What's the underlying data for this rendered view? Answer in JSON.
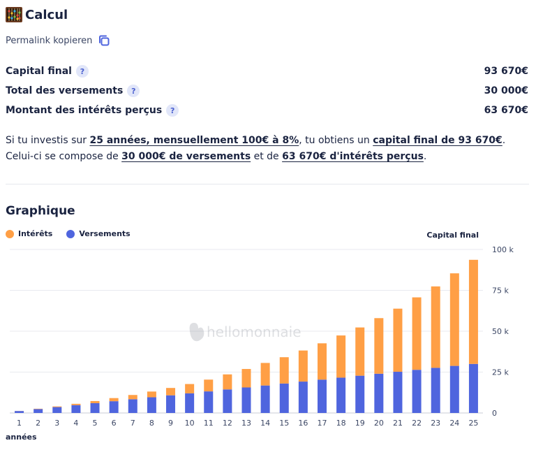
{
  "header": {
    "title": "Calcul",
    "icon": "abacus-icon"
  },
  "permalink": {
    "label": "Permalink kopieren",
    "icon": "copy-icon"
  },
  "stats": [
    {
      "label": "Capital final",
      "help": "?",
      "value": "93 670€"
    },
    {
      "label": "Total des versements",
      "help": "?",
      "value": "30 000€"
    },
    {
      "label": "Montant des intérêts perçus",
      "help": "?",
      "value": "63 670€"
    }
  ],
  "summary": {
    "p1": "Si tu investis sur ",
    "h1": "25 années, mensuellement 100€ à 8%",
    "p2": ", tu obtiens un ",
    "h2": "capital final de 93 670€",
    "p3": ". Celui-ci se compose de ",
    "h3": "30 000€ de versements",
    "p4": " et de ",
    "h4": "63 670€ d'intérêts perçus",
    "p5": "."
  },
  "graph": {
    "title": "Graphique",
    "capital_label": "Capital final",
    "watermark": "hellomonnaie"
  },
  "colors": {
    "interets": "#ff9f45",
    "versements": "#4f65de",
    "text": "#1a2340"
  },
  "chart_data": {
    "type": "bar",
    "stacked": true,
    "x": [
      1,
      2,
      3,
      4,
      5,
      6,
      7,
      8,
      9,
      10,
      11,
      12,
      13,
      14,
      15,
      16,
      17,
      18,
      19,
      20,
      21,
      22,
      23,
      24,
      25
    ],
    "xlabel": "années",
    "ylabel": "Capital final",
    "ylim": [
      0,
      100000
    ],
    "yticks": [
      0,
      25000,
      50000,
      75000,
      100000
    ],
    "ytick_labels": [
      "0",
      "25 k",
      "50 k",
      "75 k",
      "100 k"
    ],
    "legend_position": "top-left",
    "grid": true,
    "series": [
      {
        "name": "Versements",
        "values": [
          1200,
          2400,
          3600,
          4800,
          6000,
          7200,
          8400,
          9600,
          10800,
          12000,
          13200,
          14400,
          15600,
          16800,
          18000,
          19200,
          20400,
          21600,
          22800,
          24000,
          25200,
          26400,
          27600,
          28800,
          30000
        ]
      },
      {
        "name": "Intérêts",
        "values": [
          50,
          200,
          400,
          800,
          1300,
          1900,
          2600,
          3500,
          4500,
          5700,
          7200,
          9200,
          11300,
          13800,
          16100,
          19000,
          22200,
          25800,
          29500,
          34000,
          38600,
          44300,
          49800,
          56600,
          63670
        ]
      }
    ]
  }
}
